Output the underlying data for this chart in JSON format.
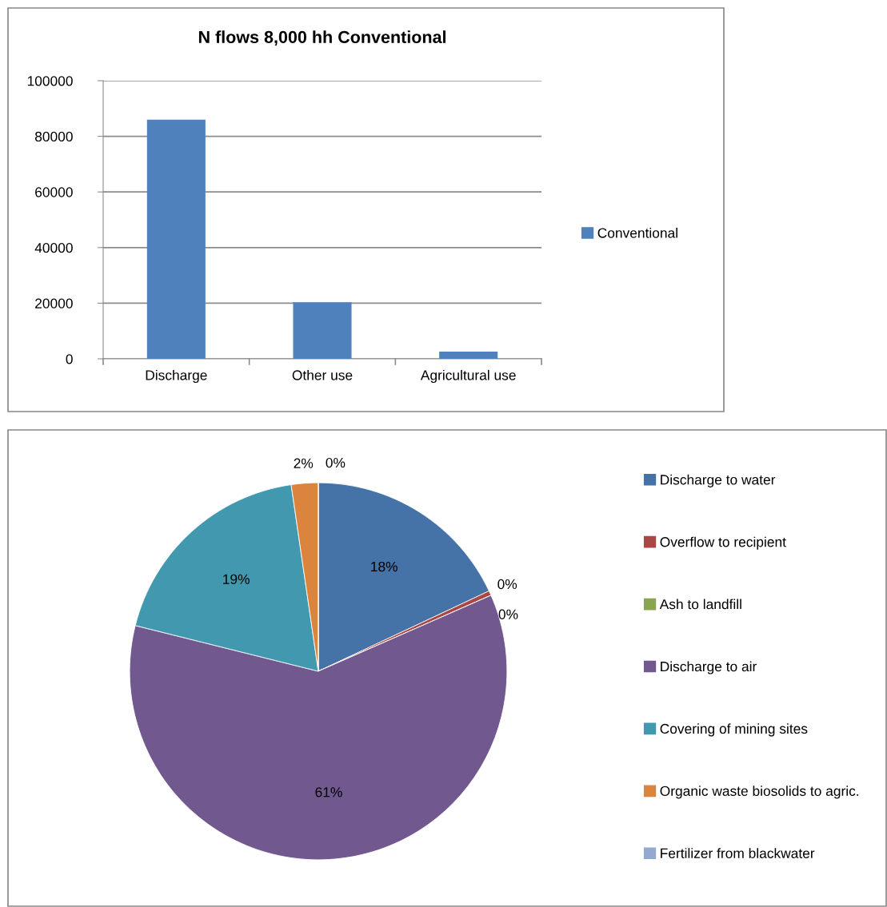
{
  "chart_data": [
    {
      "type": "bar",
      "title": "N flows 8,000 hh Conventional",
      "categories": [
        "Discharge",
        "Other use",
        "Agricultural use"
      ],
      "series": [
        {
          "name": "Conventional",
          "color": "#4f81bd",
          "values": [
            86000,
            20300,
            2600
          ]
        }
      ],
      "ylim": [
        0,
        100000
      ],
      "yticks": [
        0,
        20000,
        40000,
        60000,
        80000,
        100000
      ],
      "grid": "y",
      "legend": "right"
    },
    {
      "type": "pie",
      "categories": [
        "Discharge to water",
        "Overflow to recipient",
        "Ash to landfill",
        "Discharge to air",
        "Covering of mining sites",
        "Organic waste biosolids to agric.",
        "Fertilizer from blackwater"
      ],
      "values": [
        18.0,
        0.4,
        0,
        60.5,
        18.8,
        2.3,
        0
      ],
      "colors": [
        "#4572a7",
        "#aa4643",
        "#89a54e",
        "#71588f",
        "#4198af",
        "#db843d",
        "#93a9cf"
      ],
      "value_labels": [
        "18%",
        "0%",
        "0%",
        "61%",
        "19%",
        "2%",
        "0%"
      ],
      "legend": "right"
    }
  ]
}
